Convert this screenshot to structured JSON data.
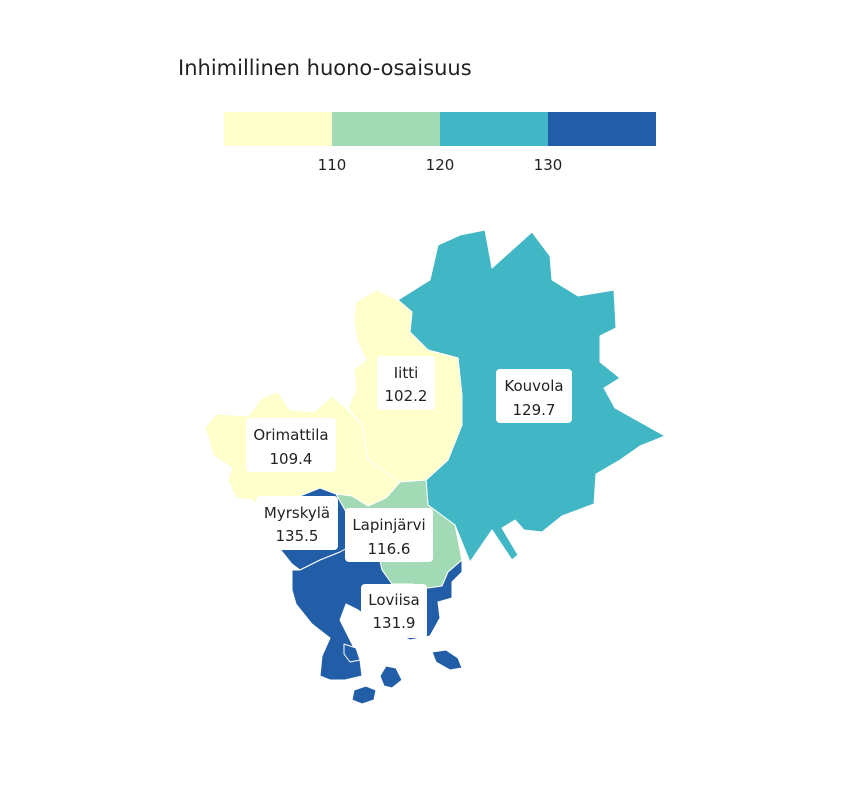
{
  "title": "Inhimillinen huono-osaisuus",
  "legend": {
    "breaks": [
      "110",
      "120",
      "130"
    ],
    "colors": [
      "#ffffcc",
      "#a1dab4",
      "#41b6c4",
      "#225ea8"
    ]
  },
  "regions": [
    {
      "name": "Iitti",
      "value": "102.2",
      "color": "#ffffcc"
    },
    {
      "name": "Orimattila",
      "value": "109.4",
      "color": "#ffffcc"
    },
    {
      "name": "Myrskylä",
      "value": "135.5",
      "color": "#225ea8"
    },
    {
      "name": "Lapinjärvi",
      "value": "116.6",
      "color": "#a1dab4"
    },
    {
      "name": "Loviisa",
      "value": "131.9",
      "color": "#225ea8"
    },
    {
      "name": "Kouvola",
      "value": "129.7",
      "color": "#41b6c4"
    }
  ]
}
